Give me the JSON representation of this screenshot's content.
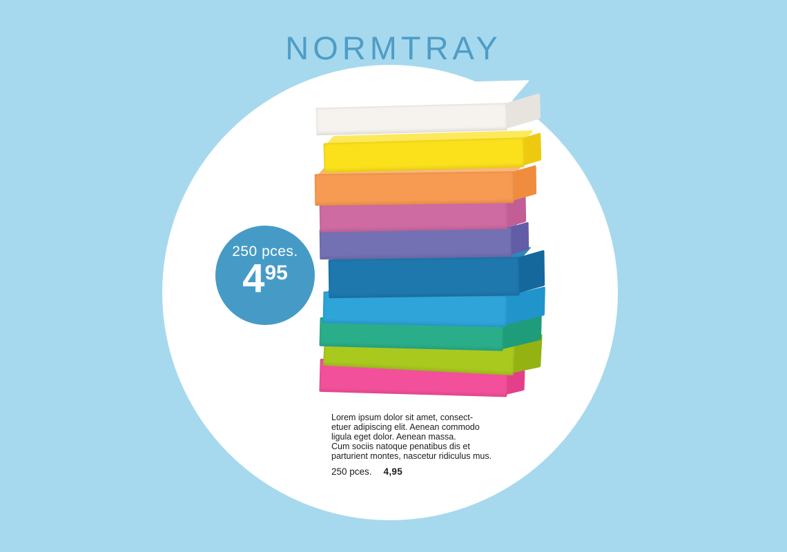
{
  "page": {
    "background_color": "#a6d9ee"
  },
  "header": {
    "title": "NORMTRAY",
    "title_color": "#4f9dc6"
  },
  "price_badge": {
    "quantity": "250 pces.",
    "price_main": "4",
    "price_sup": "95",
    "background_color": "#469bc6",
    "text_color": "#ffffff"
  },
  "product": {
    "name": "stack-of-colorful-paper-trays",
    "layers": [
      {
        "name": "white",
        "front": "#f6f3ef",
        "top": "#ffffff",
        "side": "#e7e3dd"
      },
      {
        "name": "yellow",
        "front": "#fbe01c",
        "top": "#fde95a",
        "side": "#edca10"
      },
      {
        "name": "orange",
        "front": "#f89b52",
        "top": "#fbb677",
        "side": "#ef8c3e"
      },
      {
        "name": "mauve-pink",
        "front": "#ce6ba2",
        "top": "#dc89b6",
        "side": "#c25d96"
      },
      {
        "name": "purple",
        "front": "#7470b4",
        "top": "#8b85c3",
        "side": "#635ca6"
      },
      {
        "name": "dark-blue",
        "front": "#1e78ad",
        "top": "#2f86b8",
        "side": "#15689c"
      },
      {
        "name": "cyan-blue",
        "front": "#2ea4d9",
        "top": "#4db4e2",
        "side": "#2094cb"
      },
      {
        "name": "teal-green",
        "front": "#2aae89",
        "top": "#47bc9d",
        "side": "#1f9c79"
      },
      {
        "name": "lime-green",
        "front": "#a9c91f",
        "top": "#bcd542",
        "side": "#94b312"
      },
      {
        "name": "hot-pink",
        "front": "#f3509b",
        "top": "#f773ae",
        "side": "#e43f8b"
      }
    ]
  },
  "description": {
    "lines": [
      "Lorem ipsum dolor sit amet, consect-",
      "etuer adipiscing elit. Aenean commodo",
      "ligula eget dolor. Aenean massa.",
      "Cum sociis natoque penatibus dis et",
      "parturient montes, nascetur ridiculus mus."
    ],
    "quantity": "250 pces.",
    "price": "4,95"
  }
}
